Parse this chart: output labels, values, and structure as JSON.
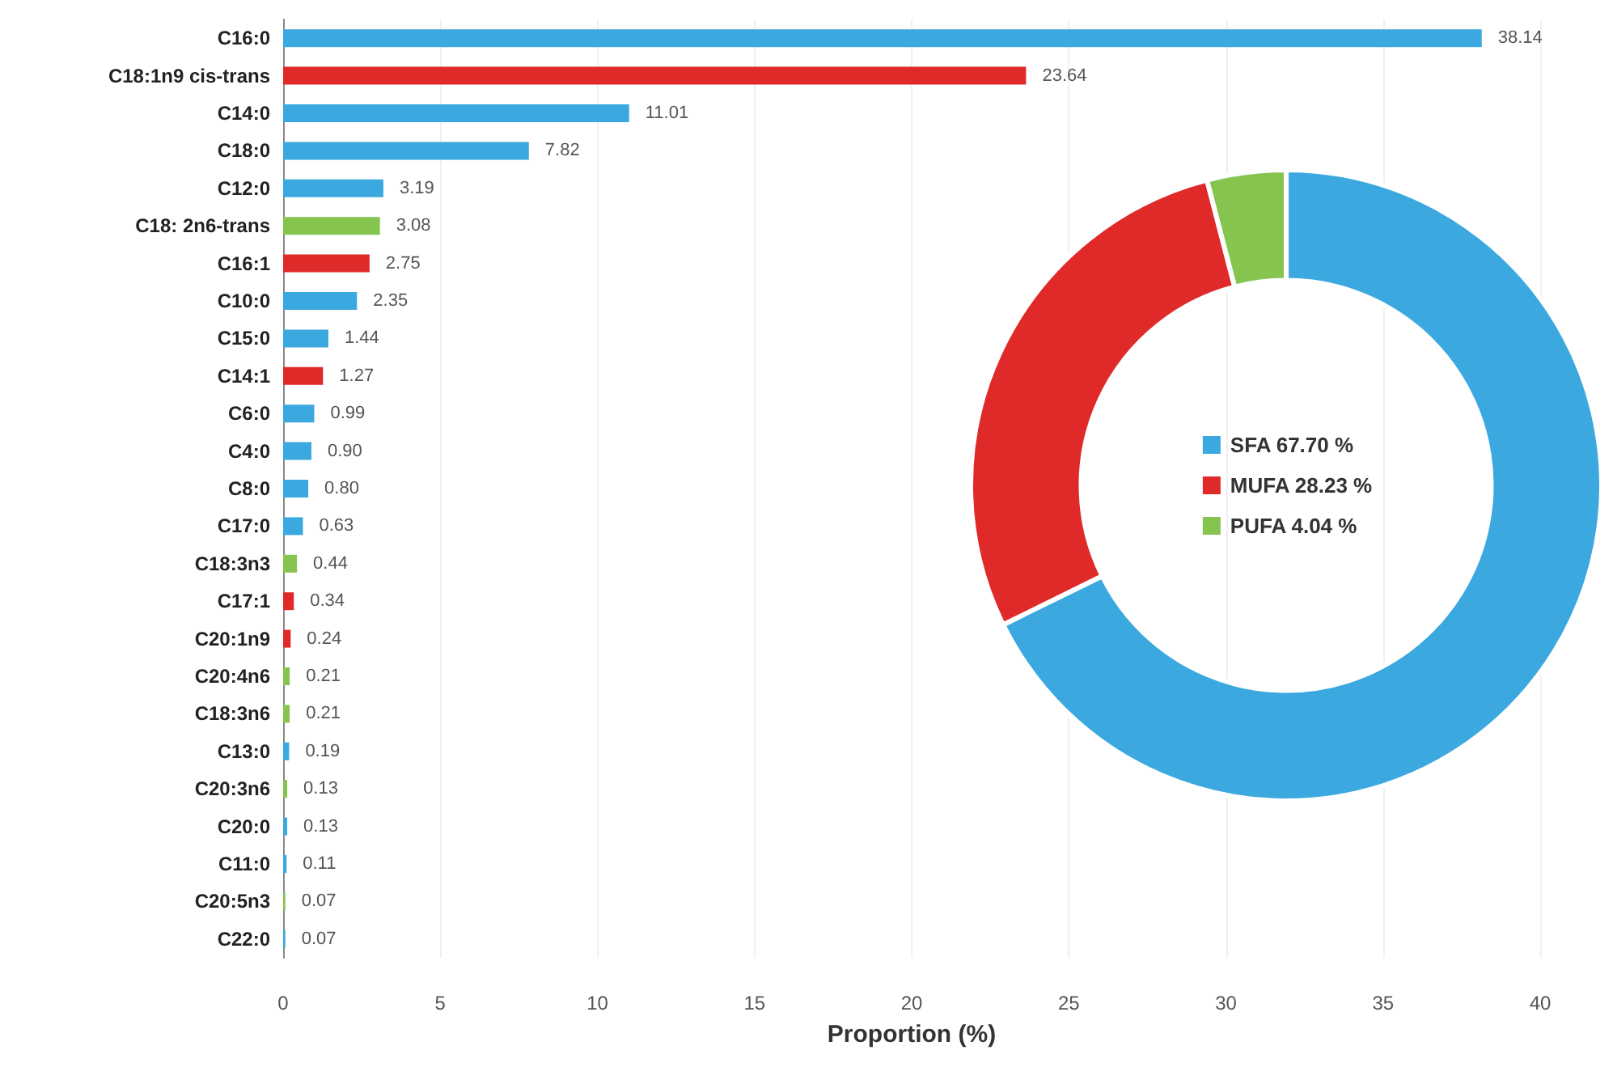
{
  "chart_data": [
    {
      "type": "bar",
      "orientation": "horizontal",
      "xlabel": "Proportion (%)",
      "categories": [
        "C16:0",
        "C18:1n9 cis-trans",
        "C14:0",
        "C18:0",
        "C12:0",
        "C18: 2n6-trans",
        "C16:1",
        "C10:0",
        "C15:0",
        "C14:1",
        "C6:0",
        "C4:0",
        "C8:0",
        "C17:0",
        "C18:3n3",
        "C17:1",
        "C20:1n9",
        "C20:4n6",
        "C18:3n6",
        "C13:0",
        "C20:3n6",
        "C20:0",
        "C11:0",
        "C20:5n3",
        "C22:0"
      ],
      "values": [
        38.14,
        23.64,
        11.01,
        7.82,
        3.19,
        3.08,
        2.75,
        2.35,
        1.44,
        1.27,
        0.99,
        0.9,
        0.8,
        0.63,
        0.44,
        0.34,
        0.24,
        0.21,
        0.21,
        0.19,
        0.13,
        0.13,
        0.11,
        0.07,
        0.07
      ],
      "value_labels": [
        "38.14",
        "23.64",
        "11.01",
        "7.82",
        "3.19",
        "3.08",
        "2.75",
        "2.35",
        "1.44",
        "1.27",
        "0.99",
        "0.90",
        "0.80",
        "0.63",
        "0.44",
        "0.34",
        "0.24",
        "0.21",
        "0.21",
        "0.19",
        "0.13",
        "0.13",
        "0.11",
        "0.07",
        "0.07"
      ],
      "colors": [
        "#3ba8df",
        "#e02a2a",
        "#3ba8df",
        "#3ba8df",
        "#3ba8df",
        "#86c450",
        "#e02a2a",
        "#3ba8df",
        "#3ba8df",
        "#e02a2a",
        "#3ba8df",
        "#3ba8df",
        "#3ba8df",
        "#3ba8df",
        "#86c450",
        "#e02a2a",
        "#e02a2a",
        "#86c450",
        "#86c450",
        "#3ba8df",
        "#86c450",
        "#3ba8df",
        "#3ba8df",
        "#86c450",
        "#3ba8df"
      ],
      "xlim": [
        0,
        40
      ],
      "xticks": [
        0,
        5,
        10,
        15,
        20,
        25,
        30,
        35,
        40
      ],
      "grid": "x"
    },
    {
      "type": "donut",
      "categories": [
        "SFA",
        "MUFA",
        "PUFA"
      ],
      "values": [
        67.7,
        28.23,
        4.04
      ],
      "value_labels": [
        "67.70 %",
        "28.23 %",
        "4.04 %"
      ],
      "colors": [
        "#3ba8df",
        "#e02a2a",
        "#86c450"
      ],
      "legend": "center"
    }
  ]
}
